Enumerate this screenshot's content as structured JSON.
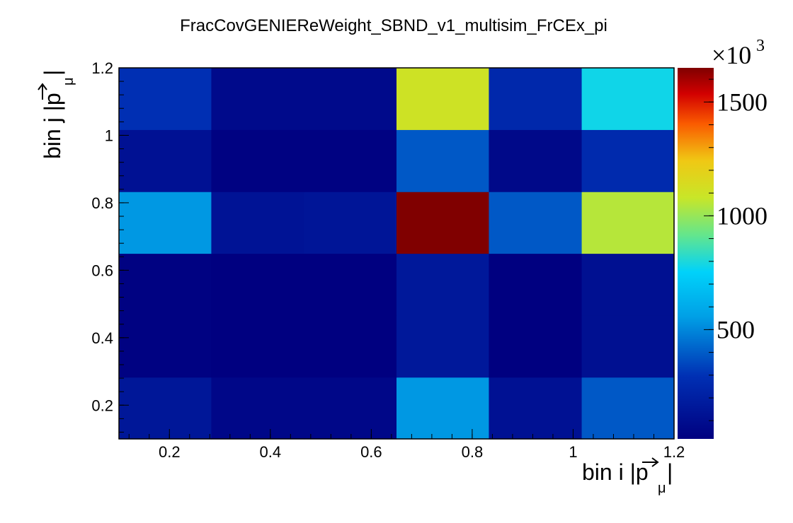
{
  "chart_data": {
    "type": "heatmap",
    "title": "FracCovGENIEReWeight_SBND_v1_multisim_FrCEx_pi",
    "xlabel": "bin i |p_μ|",
    "ylabel": "bin j |p_μ|",
    "x_edges": [
      0.1,
      0.283,
      0.467,
      0.65,
      0.833,
      1.017,
      1.2
    ],
    "y_edges": [
      0.1,
      0.283,
      0.467,
      0.65,
      0.833,
      1.017,
      1.2
    ],
    "xlim": [
      0.1,
      1.2
    ],
    "ylim": [
      0.1,
      1.2
    ],
    "x_ticks": [
      "0.2",
      "0.4",
      "0.6",
      "0.8",
      "1",
      "1.2"
    ],
    "y_ticks": [
      "0.2",
      "0.4",
      "0.6",
      "0.8",
      "1",
      "1.2"
    ],
    "z_range": [
      20,
      1650
    ],
    "z_ticks": [
      "500",
      "1000",
      "1500"
    ],
    "z_multiplier": "×10",
    "z_multiplier_exp": "3",
    "colormap": "root-rainbow",
    "values": [
      [
        150,
        60,
        60,
        540,
        120,
        390
      ],
      [
        30,
        20,
        20,
        160,
        20,
        110
      ],
      [
        30,
        20,
        20,
        160,
        20,
        110
      ],
      [
        540,
        130,
        140,
        1650,
        390,
        1050
      ],
      [
        120,
        30,
        30,
        390,
        70,
        260
      ],
      [
        290,
        80,
        80,
        1100,
        250,
        780
      ]
    ]
  }
}
